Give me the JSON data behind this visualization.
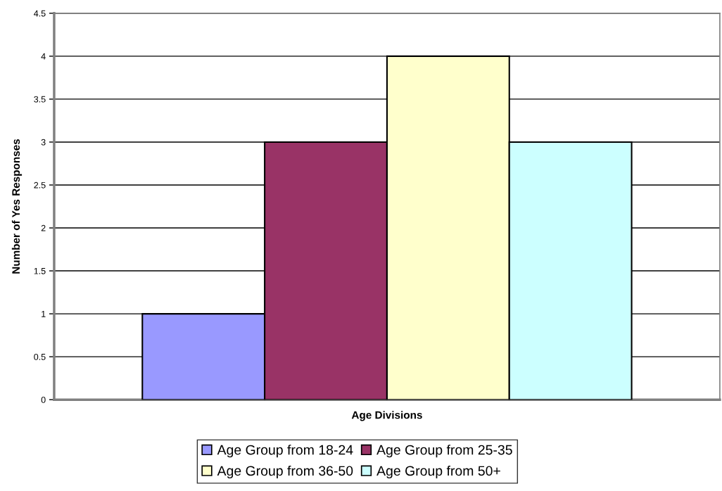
{
  "chart_data": {
    "type": "bar",
    "xlabel": "Age Divisions",
    "ylabel": "Number of Yes Responses",
    "categories": [
      null
    ],
    "series": [
      {
        "name": "Age Group from 18-24",
        "color": "#9999ff",
        "values": [
          1
        ]
      },
      {
        "name": "Age Group from 25-35",
        "color": "#993366",
        "values": [
          3
        ]
      },
      {
        "name": "Age Group from 36-50",
        "color": "#ffffcc",
        "values": [
          4
        ]
      },
      {
        "name": "Age Group from 50+",
        "color": "#ccffff",
        "values": [
          3
        ]
      }
    ],
    "ylim": [
      0,
      4.5
    ],
    "yticks": [
      0,
      0.5,
      1,
      1.5,
      2,
      2.5,
      3,
      3.5,
      4,
      4.5
    ],
    "grid": "y",
    "legend": "bottom"
  }
}
